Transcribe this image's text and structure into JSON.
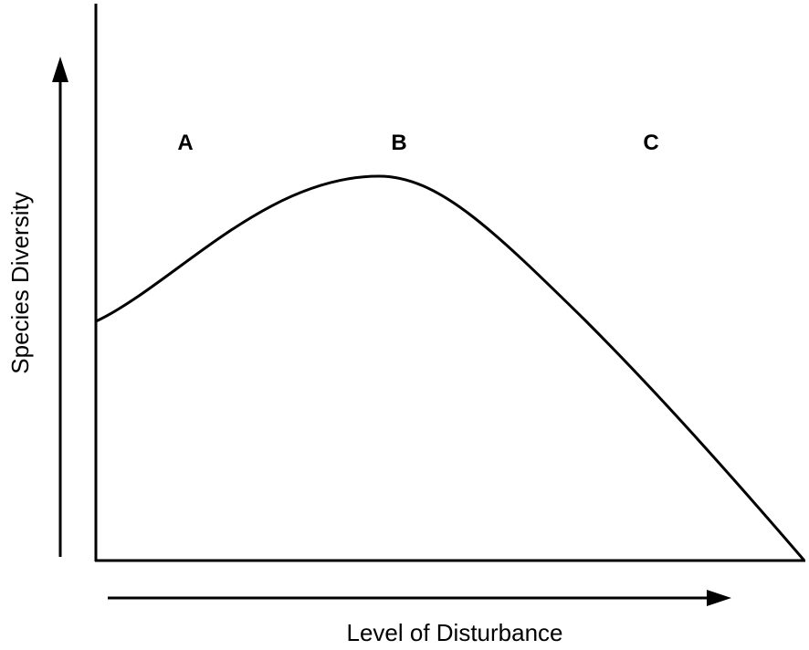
{
  "y_axis": {
    "label": "Species Diversity"
  },
  "x_axis": {
    "label": "Level of Disturbance"
  },
  "regions": [
    {
      "label": "A"
    },
    {
      "label": "B"
    },
    {
      "label": "C"
    }
  ]
}
